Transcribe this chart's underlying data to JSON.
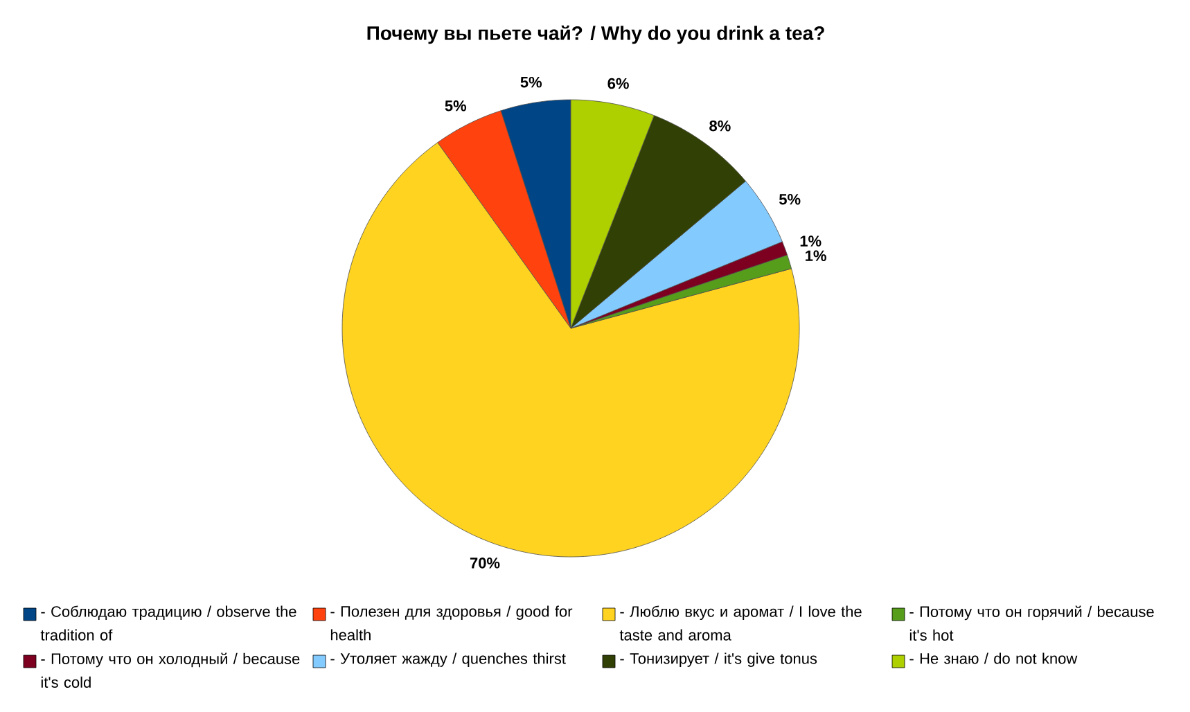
{
  "chart_data": {
    "type": "pie",
    "title": "Почему вы пьете чай? / Why do you drink a tea?",
    "categories": [
      "- Соблюдаю традицию / observe the tradition of",
      "- Полезен для здоровья / good for health",
      "- Люблю вкус и аромат / I love the taste and aroma",
      "- Потому что он горячий / because it's hot",
      "- Потому что он холодный / because it's cold",
      "- Утоляет жажду / quenches thirst",
      "- Тонизирует / it's give tonus",
      "- Не знаю / do not know"
    ],
    "values": [
      5,
      5,
      70,
      1,
      1,
      5,
      8,
      6
    ],
    "value_labels": [
      "5%",
      "5%",
      "70%",
      "1%",
      "1%",
      "5%",
      "8%",
      "6%"
    ],
    "colors": [
      "#004586",
      "#ff420e",
      "#ffd320",
      "#579d1c",
      "#7e0021",
      "#83caff",
      "#314004",
      "#aecf00"
    ],
    "legend": "bottom"
  }
}
